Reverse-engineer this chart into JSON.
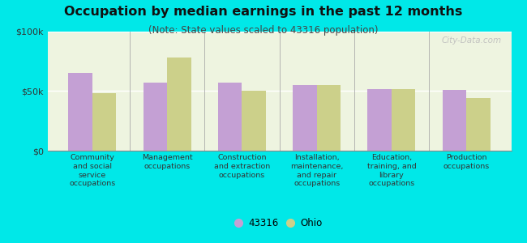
{
  "title": "Occupation by median earnings in the past 12 months",
  "subtitle": "(Note: State values scaled to 43316 population)",
  "categories": [
    "Community\nand social\nservice\noccupations",
    "Management\noccupations",
    "Construction\nand extraction\noccupations",
    "Installation,\nmaintenance,\nand repair\noccupations",
    "Education,\ntraining, and\nlibrary\noccupations",
    "Production\noccupations"
  ],
  "values_43316": [
    65000,
    57000,
    57000,
    55000,
    52000,
    51000
  ],
  "values_ohio": [
    48000,
    78000,
    50000,
    55000,
    52000,
    44000
  ],
  "color_43316": "#c4a0d4",
  "color_ohio": "#ccd08a",
  "ylim": [
    0,
    100000
  ],
  "ytick_labels": [
    "$0",
    "$50k",
    "$100k"
  ],
  "legend_label_43316": "43316",
  "legend_label_ohio": "Ohio",
  "bg_color": "#00e8e8",
  "plot_bg": "#eef4e0",
  "title_fontsize": 11.5,
  "subtitle_fontsize": 8.5,
  "bar_width": 0.32,
  "watermark": "City-Data.com"
}
